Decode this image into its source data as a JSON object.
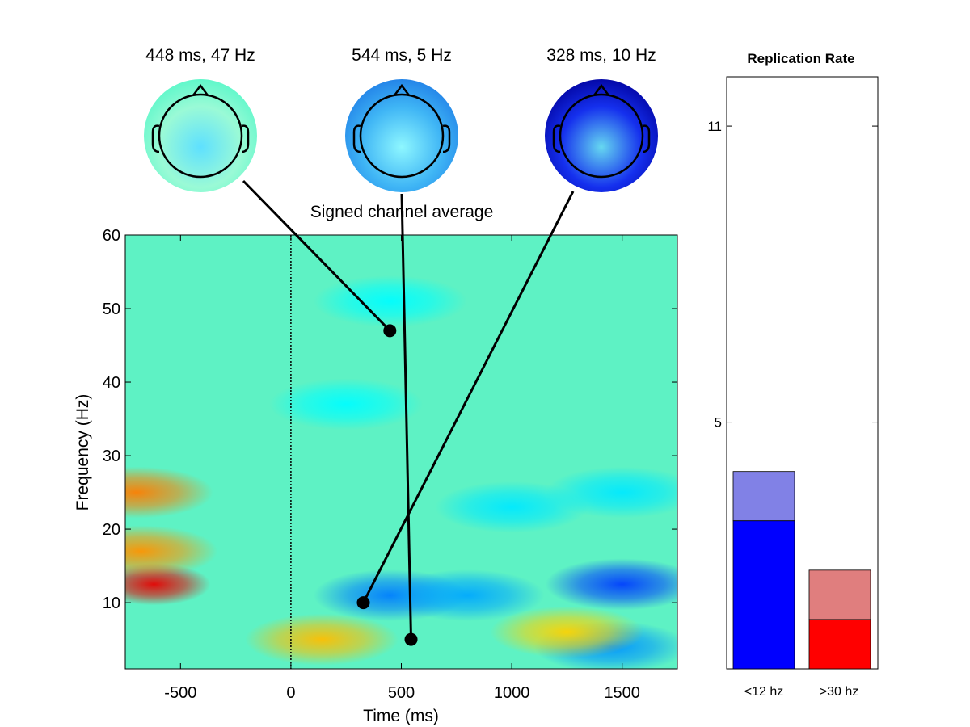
{
  "chart_data": [
    {
      "type": "heatmap",
      "title": "Signed channel average",
      "xlabel": "Time (ms)",
      "ylabel": "Frequency (Hz)",
      "xlim": [
        -750,
        1750
      ],
      "ylim": [
        1,
        60
      ],
      "x_ticks": [
        -500,
        0,
        500,
        1000,
        1500
      ],
      "y_ticks": [
        10,
        20,
        30,
        40,
        50,
        60
      ],
      "event_line_x": 0,
      "colormap": "jet",
      "grid": false,
      "blobs": [
        {
          "t": -620,
          "f": 12.5,
          "value": 0.95
        },
        {
          "t": -700,
          "f": 25,
          "value": 0.6
        },
        {
          "t": -680,
          "f": 17,
          "value": 0.55
        },
        {
          "t": 450,
          "f": 11,
          "value": -0.6
        },
        {
          "t": 800,
          "f": 11,
          "value": -0.5
        },
        {
          "t": 1500,
          "f": 12.5,
          "value": -0.75
        },
        {
          "t": 1000,
          "f": 23,
          "value": -0.35
        },
        {
          "t": 1500,
          "f": 25,
          "value": -0.35
        },
        {
          "t": 250,
          "f": 37,
          "value": -0.3
        },
        {
          "t": 1450,
          "f": 4,
          "value": -0.55
        },
        {
          "t": 140,
          "f": 5,
          "value": 0.45
        },
        {
          "t": 1250,
          "f": 6,
          "value": 0.4
        },
        {
          "t": 450,
          "f": 51,
          "value": -0.3
        }
      ],
      "markers": [
        {
          "label": "448 ms, 47 Hz",
          "t": 448,
          "f": 47
        },
        {
          "label": "544 ms, 5 Hz",
          "t": 544,
          "f": 5
        },
        {
          "label": "328 ms, 10 Hz",
          "t": 328,
          "f": 10
        }
      ],
      "topomaps": [
        {
          "label": "448 ms, 47 Hz",
          "intensity": 0.15,
          "colors": [
            "#54f7c8",
            "#9afad6",
            "#5ee0ff"
          ]
        },
        {
          "label": "544 ms, 5 Hz",
          "intensity": 0.5,
          "colors": [
            "#1e7be6",
            "#3fb5f5",
            "#8ef7ff"
          ]
        },
        {
          "label": "328 ms, 10 Hz",
          "intensity": 1.0,
          "colors": [
            "#00009a",
            "#1530ee",
            "#66d8f0"
          ]
        }
      ]
    },
    {
      "type": "bar",
      "title": "Replication Rate",
      "categories": [
        "<12 hz",
        ">30 hz"
      ],
      "series": [
        {
          "values": [
            3.0,
            1.0
          ],
          "colors": [
            "#0000ff",
            "#ff0000"
          ]
        },
        {
          "values": [
            4.0,
            2.0
          ],
          "colors": [
            "#8181e6",
            "#e07e7e"
          ]
        }
      ],
      "ylim": [
        0,
        12
      ],
      "y_ticks": [
        5,
        11
      ],
      "stacked": false
    }
  ]
}
